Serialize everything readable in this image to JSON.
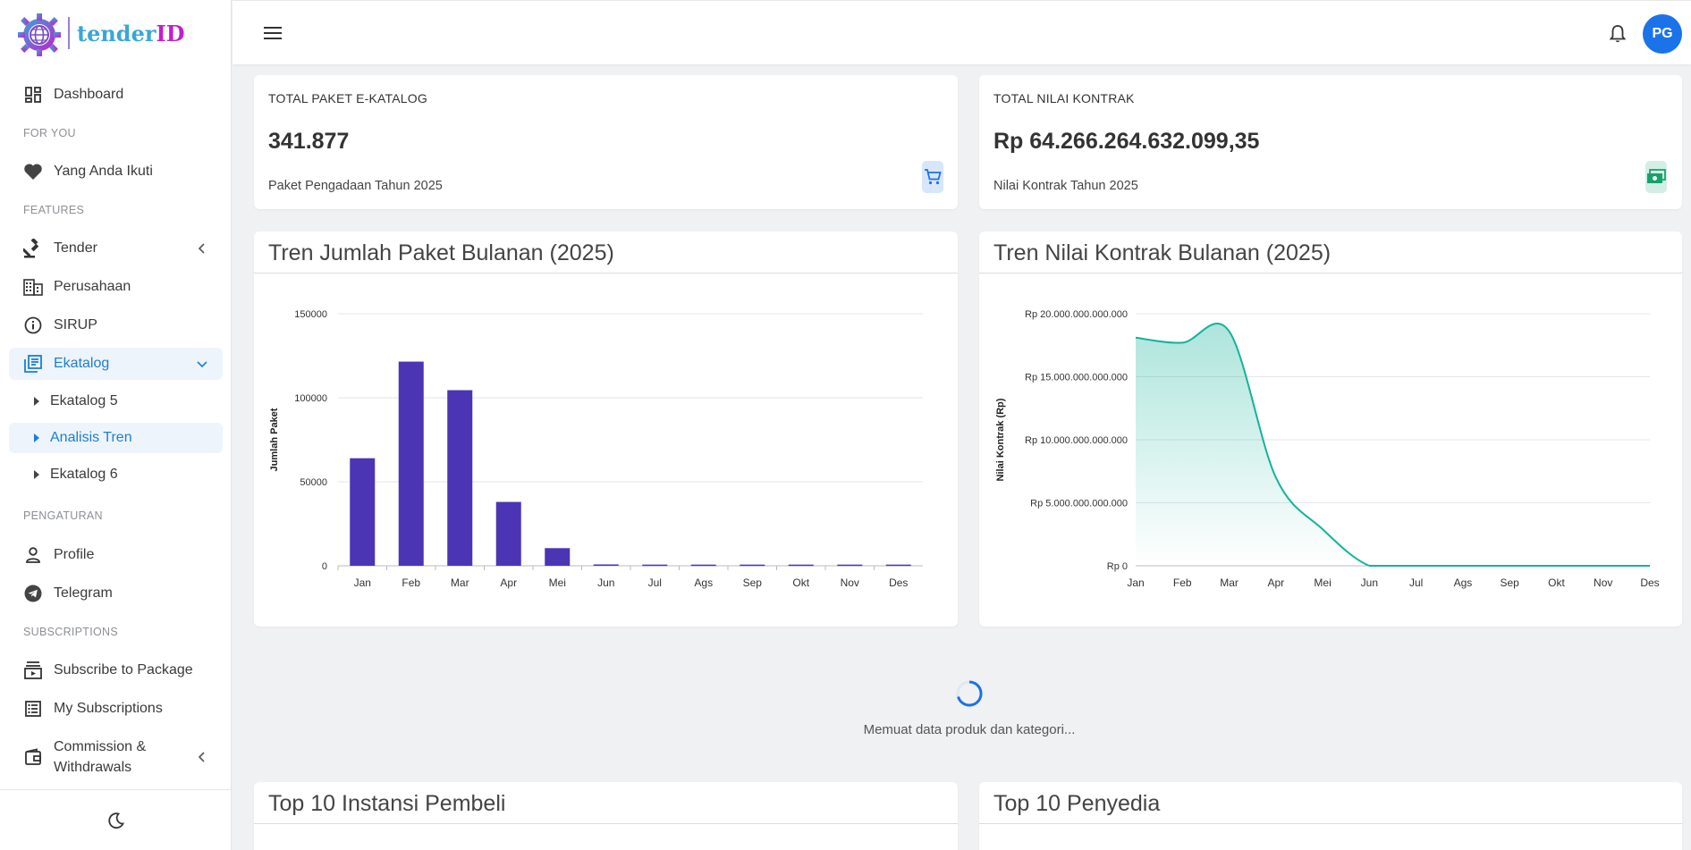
{
  "brand": {
    "part1": "tender",
    "part2": "ID"
  },
  "sidebar": {
    "dashboard": "Dashboard",
    "section_for_you": "FOR YOU",
    "yang_anda_ikuti": "Yang Anda Ikuti",
    "section_features": "FEATURES",
    "tender": "Tender",
    "perusahaan": "Perusahaan",
    "sirup": "SIRUP",
    "ekatalog": "Ekatalog",
    "ekatalog5": "Ekatalog 5",
    "analisis_tren": "Analisis Tren",
    "ekatalog6": "Ekatalog 6",
    "section_pengaturan": "PENGATURAN",
    "profile": "Profile",
    "telegram": "Telegram",
    "section_subscriptions": "SUBSCRIPTIONS",
    "subscribe": "Subscribe to Package",
    "my_subscriptions": "My Subscriptions",
    "commission_line1": "Commission &",
    "commission_line2": "Withdrawals"
  },
  "topbar": {
    "avatar_initials": "PG"
  },
  "stats": {
    "paket": {
      "title": "TOTAL PAKET E-KATALOG",
      "value": "341.877",
      "sub": "Paket Pengadaan Tahun 2025"
    },
    "nilai": {
      "title": "TOTAL NILAI KONTRAK",
      "value": "Rp 64.266.264.632.099,35",
      "sub": "Nilai Kontrak Tahun 2025"
    }
  },
  "panels": {
    "tren_paket": "Tren Jumlah Paket Bulanan (2025)",
    "tren_nilai": "Tren Nilai Kontrak Bulanan (2025)",
    "top_instansi": "Top 10 Instansi Pembeli",
    "top_penyedia": "Top 10 Penyedia"
  },
  "loading_text": "Memuat data produk dan kategori...",
  "colors": {
    "bar": "#4b35b5",
    "line": "#14b39a",
    "accent": "#1a7fd6",
    "avatar": "#1a73e8"
  },
  "chart_data": [
    {
      "type": "bar",
      "ylabel": "Jumlah Paket",
      "categories": [
        "Jan",
        "Feb",
        "Mar",
        "Apr",
        "Mei",
        "Jun",
        "Jul",
        "Ags",
        "Sep",
        "Okt",
        "Nov",
        "Des"
      ],
      "values": [
        64000,
        121500,
        104500,
        38000,
        10500,
        800,
        700,
        700,
        700,
        700,
        700,
        700
      ],
      "ylim": [
        0,
        150000
      ],
      "yticks": [
        "0",
        "50000",
        "100000",
        "150000"
      ],
      "grid": true
    },
    {
      "type": "area",
      "ylabel": "Nilai Kontrak (Rp)",
      "categories": [
        "Jan",
        "Feb",
        "Mar",
        "Apr",
        "Mei",
        "Jun",
        "Jul",
        "Ags",
        "Sep",
        "Okt",
        "Nov",
        "Des"
      ],
      "values": [
        18100000000000,
        17700000000000,
        18600000000000,
        7000000000000,
        2900000000000,
        0,
        0,
        0,
        0,
        0,
        0,
        0
      ],
      "ylim": [
        0,
        20000000000000
      ],
      "yticks": [
        "Rp 0",
        "Rp 5.000.000.000.000",
        "Rp 10.000.000.000.000",
        "Rp 15.000.000.000.000",
        "Rp 20.000.000.000.000"
      ],
      "grid": true
    }
  ]
}
